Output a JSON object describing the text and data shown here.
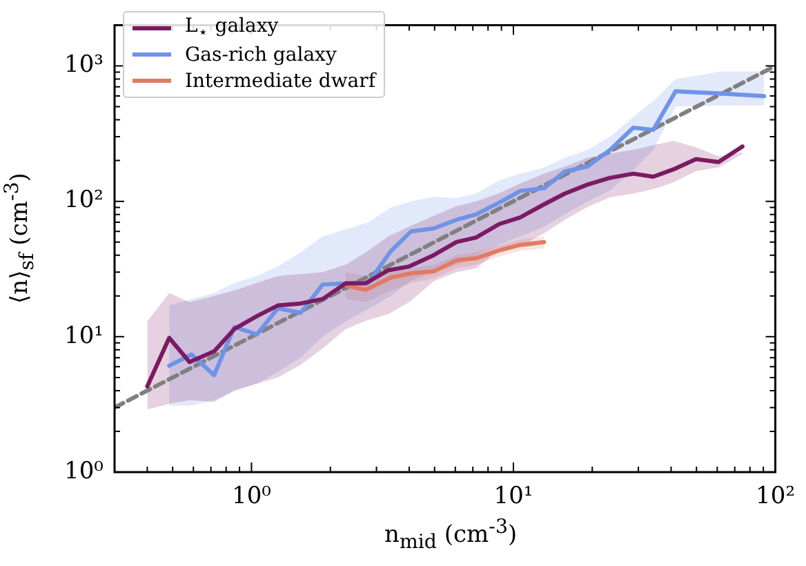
{
  "chart_data": {
    "type": "line",
    "xlabel": "n$_{mid}$ (cm$^{-3}$)",
    "ylabel": "⟨n⟩$_{sf}$ (cm$^{-3}$)",
    "log": "xy",
    "legend": "top left",
    "grid": false,
    "xlim": [
      0.3,
      100
    ],
    "ylim": [
      1,
      2000
    ],
    "xticks": [
      {
        "value": 0.3,
        "label": null
      },
      {
        "value": 0.4,
        "label": null
      },
      {
        "value": 0.5,
        "label": null
      },
      {
        "value": 0.6,
        "label": null
      },
      {
        "value": 0.7,
        "label": null
      },
      {
        "value": 0.8,
        "label": null
      },
      {
        "value": 0.9,
        "label": null
      },
      {
        "value": 1,
        "label": "10⁰"
      },
      {
        "value": 2,
        "label": null
      },
      {
        "value": 3,
        "label": null
      },
      {
        "value": 4,
        "label": null
      },
      {
        "value": 5,
        "label": null
      },
      {
        "value": 6,
        "label": null
      },
      {
        "value": 7,
        "label": null
      },
      {
        "value": 8,
        "label": null
      },
      {
        "value": 9,
        "label": null
      },
      {
        "value": 10,
        "label": "10¹"
      },
      {
        "value": 20,
        "label": null
      },
      {
        "value": 30,
        "label": null
      },
      {
        "value": 40,
        "label": null
      },
      {
        "value": 50,
        "label": null
      },
      {
        "value": 60,
        "label": null
      },
      {
        "value": 70,
        "label": null
      },
      {
        "value": 80,
        "label": null
      },
      {
        "value": 90,
        "label": null
      },
      {
        "value": 100,
        "label": "10²"
      }
    ],
    "yticks": [
      {
        "value": 1,
        "label": "10⁰"
      },
      {
        "value": 2,
        "label": null
      },
      {
        "value": 3,
        "label": null
      },
      {
        "value": 4,
        "label": null
      },
      {
        "value": 5,
        "label": null
      },
      {
        "value": 6,
        "label": null
      },
      {
        "value": 7,
        "label": null
      },
      {
        "value": 8,
        "label": null
      },
      {
        "value": 9,
        "label": null
      },
      {
        "value": 10,
        "label": "10¹"
      },
      {
        "value": 20,
        "label": null
      },
      {
        "value": 30,
        "label": null
      },
      {
        "value": 40,
        "label": null
      },
      {
        "value": 50,
        "label": null
      },
      {
        "value": 60,
        "label": null
      },
      {
        "value": 70,
        "label": null
      },
      {
        "value": 80,
        "label": null
      },
      {
        "value": 90,
        "label": null
      },
      {
        "value": 100,
        "label": "10²"
      },
      {
        "value": 200,
        "label": null
      },
      {
        "value": 300,
        "label": null
      },
      {
        "value": 400,
        "label": null
      },
      {
        "value": 500,
        "label": null
      },
      {
        "value": 600,
        "label": null
      },
      {
        "value": 700,
        "label": null
      },
      {
        "value": 800,
        "label": null
      },
      {
        "value": 900,
        "label": null
      },
      {
        "value": 1000,
        "label": "10³"
      }
    ],
    "series": [
      {
        "name": "L$_{⋆}$ galaxy",
        "color": "#7b1a62",
        "x": [
          0.4,
          0.485,
          0.58,
          0.72,
          0.86,
          1.05,
          1.26,
          1.54,
          1.87,
          2.29,
          2.73,
          3.33,
          4.0,
          4.96,
          6.06,
          7.2,
          8.84,
          10.6,
          13.1,
          15.7,
          19.2,
          23.4,
          28.7,
          34.2,
          40.8,
          49.8,
          60.7,
          74.9
        ],
        "values": [
          4.3,
          9.8,
          6.5,
          7.8,
          11.4,
          14.2,
          17,
          17.6,
          19,
          24.8,
          24.8,
          31,
          33,
          40,
          50,
          54,
          68,
          76,
          95,
          114,
          133,
          149,
          160,
          152,
          172,
          205,
          195,
          254
        ],
        "lower": [
          2.9,
          3.2,
          3.4,
          3.3,
          4,
          4.5,
          5,
          6.2,
          8.2,
          11.4,
          13.1,
          14.7,
          18,
          25.7,
          30,
          32,
          44,
          47,
          58,
          73,
          91,
          107,
          114,
          123,
          138,
          167,
          178,
          224
        ],
        "upper": [
          13,
          21,
          18,
          20,
          22,
          25,
          28,
          29,
          30,
          34,
          42,
          55,
          65,
          78,
          92,
          100,
          115,
          135,
          160,
          180,
          210,
          225,
          240,
          260,
          280,
          250,
          215,
          230
        ]
      },
      {
        "name": "Gas-rich galaxy",
        "color": "#6f93e8",
        "x": [
          0.485,
          0.59,
          0.72,
          0.86,
          1.05,
          1.26,
          1.54,
          1.87,
          2.29,
          2.79,
          3.41,
          4.07,
          4.96,
          6.06,
          7.2,
          8.84,
          10.6,
          13.1,
          15.7,
          19.2,
          23.4,
          28.7,
          34.2,
          41.6,
          62.1,
          90.6
        ],
        "values": [
          6.1,
          7.4,
          5.2,
          11.8,
          10.4,
          16.2,
          15,
          24.3,
          24.8,
          25,
          43,
          60,
          63,
          73,
          80,
          98,
          119,
          125,
          166,
          181,
          240,
          350,
          337,
          650,
          625,
          598
        ],
        "lower": [
          3.1,
          3.1,
          3.4,
          4,
          4.5,
          5.5,
          7,
          10,
          13,
          16,
          20,
          26,
          30,
          34,
          40,
          48,
          55,
          65,
          80,
          100,
          120,
          170,
          240,
          500,
          510,
          510
        ],
        "upper": [
          17,
          19,
          21,
          25,
          28,
          33,
          42,
          55,
          62,
          70,
          90,
          100,
          108,
          106,
          114,
          143,
          160,
          178,
          210,
          240,
          300,
          420,
          550,
          800,
          910,
          910
        ]
      },
      {
        "name": "Intermediate dwarf",
        "color": "#e07b63",
        "x": [
          2.29,
          2.73,
          3.41,
          4.07,
          4.96,
          6.06,
          7.2,
          8.84,
          10.6,
          13.1
        ],
        "values": [
          23.9,
          22.2,
          27.4,
          29.4,
          30.4,
          36.6,
          38,
          43.5,
          47.6,
          50
        ],
        "lower": [
          19,
          18,
          22,
          25,
          27,
          32,
          34,
          39,
          43,
          45
        ],
        "upper": [
          30,
          28,
          31,
          32,
          34,
          40,
          42,
          47,
          52,
          55
        ]
      },
      {
        "color": "#808080",
        "line_style": "dashed",
        "x": [
          0.3,
          100
        ],
        "values": [
          3,
          1000
        ]
      }
    ]
  }
}
